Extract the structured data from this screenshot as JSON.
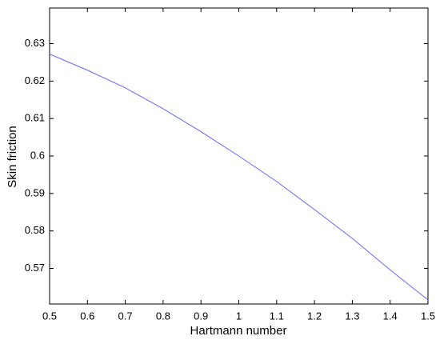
{
  "chart_data": {
    "type": "line",
    "x": [
      0.5,
      0.6,
      0.7,
      0.8,
      0.9,
      1.0,
      1.1,
      1.2,
      1.3,
      1.4,
      1.5
    ],
    "series": [
      {
        "color": "#6666ff",
        "values": [
          0.6272,
          0.6229,
          0.6182,
          0.6126,
          0.6065,
          0.6,
          0.5932,
          0.5857,
          0.578,
          0.5696,
          0.5616
        ]
      }
    ],
    "xlabel": "Hartmann number",
    "ylabel": "Skin friction",
    "xlim": [
      0.5,
      1.5
    ],
    "xticks": [
      0.5,
      0.6,
      0.7,
      0.8,
      0.9,
      1,
      1.1,
      1.2,
      1.3,
      1.4,
      1.5
    ],
    "ylim": [
      0.5605,
      0.6395
    ],
    "yticks": [
      0.57,
      0.58,
      0.59,
      0.6,
      0.61,
      0.62,
      0.63
    ]
  }
}
